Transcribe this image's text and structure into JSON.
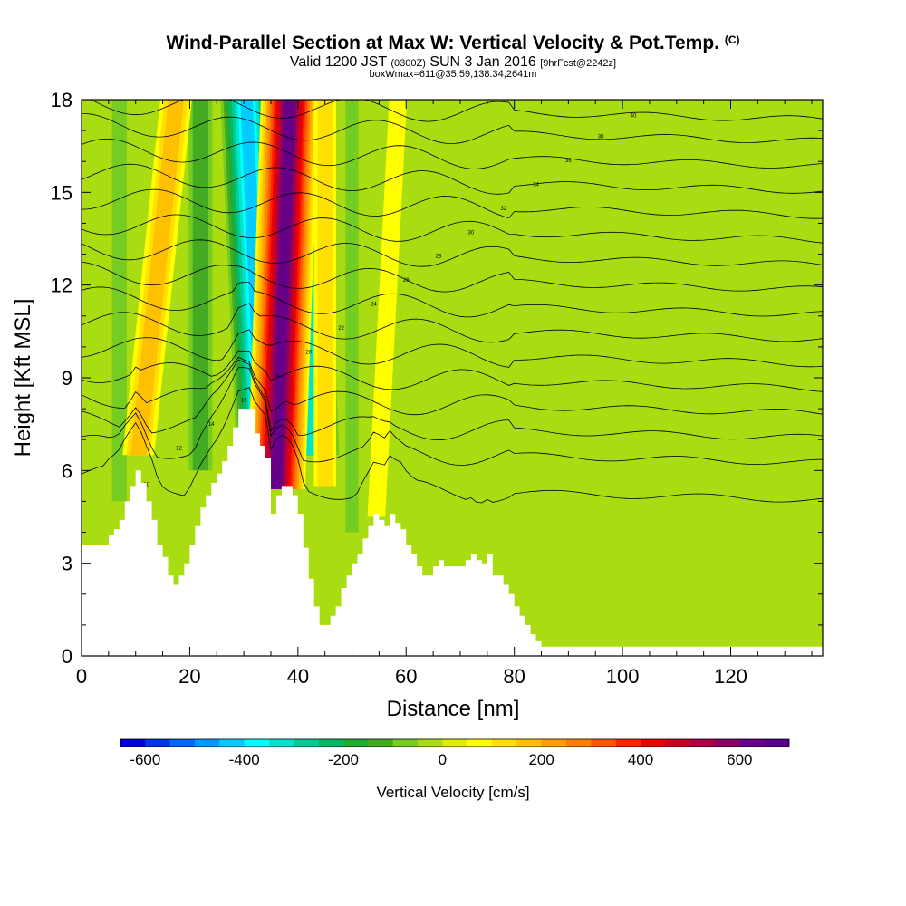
{
  "header": {
    "title": "Wind-Parallel Section at Max W: Vertical Velocity & Pot.Temp.",
    "title_mark": "(C)",
    "valid_a": "Valid 1200 JST",
    "valid_zone": "(0300Z)",
    "valid_b": "SUN 3 Jan 2016",
    "valid_fcst": "[9hrFcst@2242z]",
    "box_info": "boxWmax=611@35.59,138.34,2641m"
  },
  "chart_data": {
    "type": "heatmap",
    "xlabel": "Distance [nm]",
    "ylabel": "Height [Kft MSL]",
    "xlim": [
      0,
      137
    ],
    "ylim": [
      0,
      18
    ],
    "x_ticks": [
      "0",
      "20",
      "40",
      "60",
      "80",
      "100",
      "120"
    ],
    "y_ticks": [
      "0",
      "3",
      "6",
      "9",
      "12",
      "15",
      "18"
    ],
    "colorbar": {
      "label": "Vertical Velocity [cm/s]",
      "min": -650,
      "max": 700,
      "step": 50,
      "tick_labels": [
        "-600",
        "-400",
        "-200",
        "0",
        "200",
        "400",
        "600"
      ],
      "tick_values": [
        -600,
        -400,
        -200,
        0,
        200,
        400,
        600
      ],
      "colors": [
        "#0000dd",
        "#0033ee",
        "#0066ff",
        "#0099ff",
        "#00ccff",
        "#00ffff",
        "#00e5cc",
        "#00cc99",
        "#00bb66",
        "#22aa33",
        "#44aa22",
        "#77cc22",
        "#aadd11",
        "#ddee00",
        "#ffff00",
        "#ffe000",
        "#ffc000",
        "#ffa000",
        "#ff7f00",
        "#ff5500",
        "#ff2200",
        "#ee0000",
        "#cc0022",
        "#aa0044",
        "#880066",
        "#660088",
        "#550088"
      ]
    },
    "terrain_kft": [
      [
        0,
        3.6
      ],
      [
        4,
        3.6
      ],
      [
        5,
        3.9
      ],
      [
        6,
        4.1
      ],
      [
        7,
        4.4
      ],
      [
        8,
        5.0
      ],
      [
        9,
        5.5
      ],
      [
        10,
        6.0
      ],
      [
        11,
        5.6
      ],
      [
        12,
        5.0
      ],
      [
        13,
        4.4
      ],
      [
        14,
        3.6
      ],
      [
        15,
        3.2
      ],
      [
        16,
        2.6
      ],
      [
        17,
        2.3
      ],
      [
        18,
        2.6
      ],
      [
        19,
        3.0
      ],
      [
        20,
        3.6
      ],
      [
        21,
        4.2
      ],
      [
        22,
        4.8
      ],
      [
        23,
        5.2
      ],
      [
        24,
        5.6
      ],
      [
        25,
        5.9
      ],
      [
        26,
        6.3
      ],
      [
        27,
        6.8
      ],
      [
        28,
        7.4
      ],
      [
        29,
        8.0
      ],
      [
        31,
        8.0
      ],
      [
        32,
        7.2
      ],
      [
        33,
        6.8
      ],
      [
        34,
        6.4
      ],
      [
        35,
        4.6
      ],
      [
        36,
        5.2
      ],
      [
        37,
        5.5
      ],
      [
        38,
        5.5
      ],
      [
        39,
        5.2
      ],
      [
        40,
        4.6
      ],
      [
        41,
        3.5
      ],
      [
        42,
        2.5
      ],
      [
        43,
        1.6
      ],
      [
        44,
        1.0
      ],
      [
        45,
        1.0
      ],
      [
        46,
        1.3
      ],
      [
        47,
        1.6
      ],
      [
        48,
        2.2
      ],
      [
        49,
        2.6
      ],
      [
        50,
        3.0
      ],
      [
        51,
        3.3
      ],
      [
        52,
        3.8
      ],
      [
        53,
        4.2
      ],
      [
        54,
        4.6
      ],
      [
        55,
        4.4
      ],
      [
        56,
        4.2
      ],
      [
        57,
        4.6
      ],
      [
        58,
        4.3
      ],
      [
        59,
        4.1
      ],
      [
        60,
        3.6
      ],
      [
        61,
        3.3
      ],
      [
        62,
        2.9
      ],
      [
        63,
        2.6
      ],
      [
        64,
        2.6
      ],
      [
        65,
        2.9
      ],
      [
        66,
        3.1
      ],
      [
        67,
        2.9
      ],
      [
        68,
        2.9
      ],
      [
        69,
        2.9
      ],
      [
        70,
        2.9
      ],
      [
        71,
        3.1
      ],
      [
        72,
        3.3
      ],
      [
        73,
        3.1
      ],
      [
        74,
        3.0
      ],
      [
        75,
        3.3
      ],
      [
        76,
        2.6
      ],
      [
        77,
        2.6
      ],
      [
        78,
        2.3
      ],
      [
        79,
        2.0
      ],
      [
        80,
        1.6
      ],
      [
        81,
        1.3
      ],
      [
        82,
        1.0
      ],
      [
        83,
        0.7
      ],
      [
        84,
        0.5
      ],
      [
        85,
        0.3
      ],
      [
        137,
        0.3
      ]
    ],
    "updrafts": [
      {
        "x_low": 36.0,
        "x_high": 38.5,
        "y_bottom": 5.4,
        "y_top": 18,
        "peak": 611
      },
      {
        "x_low": 10.5,
        "x_high": 17.5,
        "y_bottom": 6.5,
        "y_top": 18,
        "peak": 180
      },
      {
        "x_low": 45.0,
        "x_high": 45.0,
        "y_bottom": 5.5,
        "y_top": 18,
        "peak": 120
      },
      {
        "x_low": 54.5,
        "x_high": 58.5,
        "y_bottom": 4.5,
        "y_top": 18,
        "peak": 90
      }
    ],
    "downdrafts": [
      {
        "x_low": 33.5,
        "x_high": 30.5,
        "y_bottom": 6.3,
        "y_top": 18,
        "peak": -450
      },
      {
        "x_low": 43.0,
        "x_high": 40.0,
        "y_bottom": 6.5,
        "y_top": 18,
        "peak": -380
      },
      {
        "x_low": 22.0,
        "x_high": 22.0,
        "y_bottom": 6.0,
        "y_top": 18,
        "peak": -180
      },
      {
        "x_low": 7.0,
        "x_high": 7.0,
        "y_bottom": 5.0,
        "y_top": 18,
        "peak": -120
      },
      {
        "x_low": 50.0,
        "x_high": 50.0,
        "y_bottom": 4.0,
        "y_top": 18,
        "peak": -100
      }
    ],
    "isentropes_kft_at_x0": [
      5.6,
      6.8,
      7.6,
      8.4,
      9.2,
      10.0,
      10.8,
      11.6,
      12.4,
      13.2,
      14.0,
      14.8,
      15.6,
      16.4,
      17.2,
      17.9
    ],
    "isentrope_values": [
      "10",
      "12",
      "14",
      "16",
      "18",
      "20",
      "22",
      "24",
      "26",
      "28",
      "30",
      "32",
      "34",
      "36",
      "38",
      "40"
    ]
  }
}
